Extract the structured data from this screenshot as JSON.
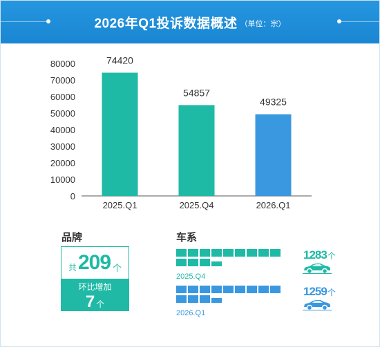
{
  "header": {
    "title": "2026年Q1投诉数据概述",
    "unit": "（单位：宗）"
  },
  "chart_data": {
    "type": "bar",
    "categories": [
      "2025.Q1",
      "2025.Q4",
      "2026.Q1"
    ],
    "values": [
      74420,
      54857,
      49325
    ],
    "data_labels": [
      "74420",
      "54857",
      "49325"
    ],
    "bar_colors": [
      "#1ebaa6",
      "#1ebaa6",
      "#3a98e0"
    ],
    "ylim": [
      0,
      80000
    ],
    "yticks": [
      "0",
      "10000",
      "20000",
      "30000",
      "40000",
      "50000",
      "60000",
      "70000",
      "80000"
    ],
    "grid": false,
    "title": "",
    "xlabel": "",
    "ylabel": ""
  },
  "brand": {
    "label": "品牌",
    "prefix": "共",
    "count": "209",
    "suffix": "个",
    "change_label": "环比增加",
    "change_value": "7",
    "change_unit": "个"
  },
  "series": {
    "label": "车系",
    "rows": [
      {
        "period": "2025.Q4",
        "count": "1283",
        "unit": "个",
        "color": "#1ebaa6",
        "icon": "car-icon"
      },
      {
        "period": "2026.Q1",
        "count": "1259",
        "unit": "个",
        "color": "#3a98e0",
        "icon": "car-icon"
      }
    ]
  },
  "colors": {
    "header": "#1f8fda",
    "teal": "#1ebaa6",
    "blue": "#3a98e0"
  }
}
